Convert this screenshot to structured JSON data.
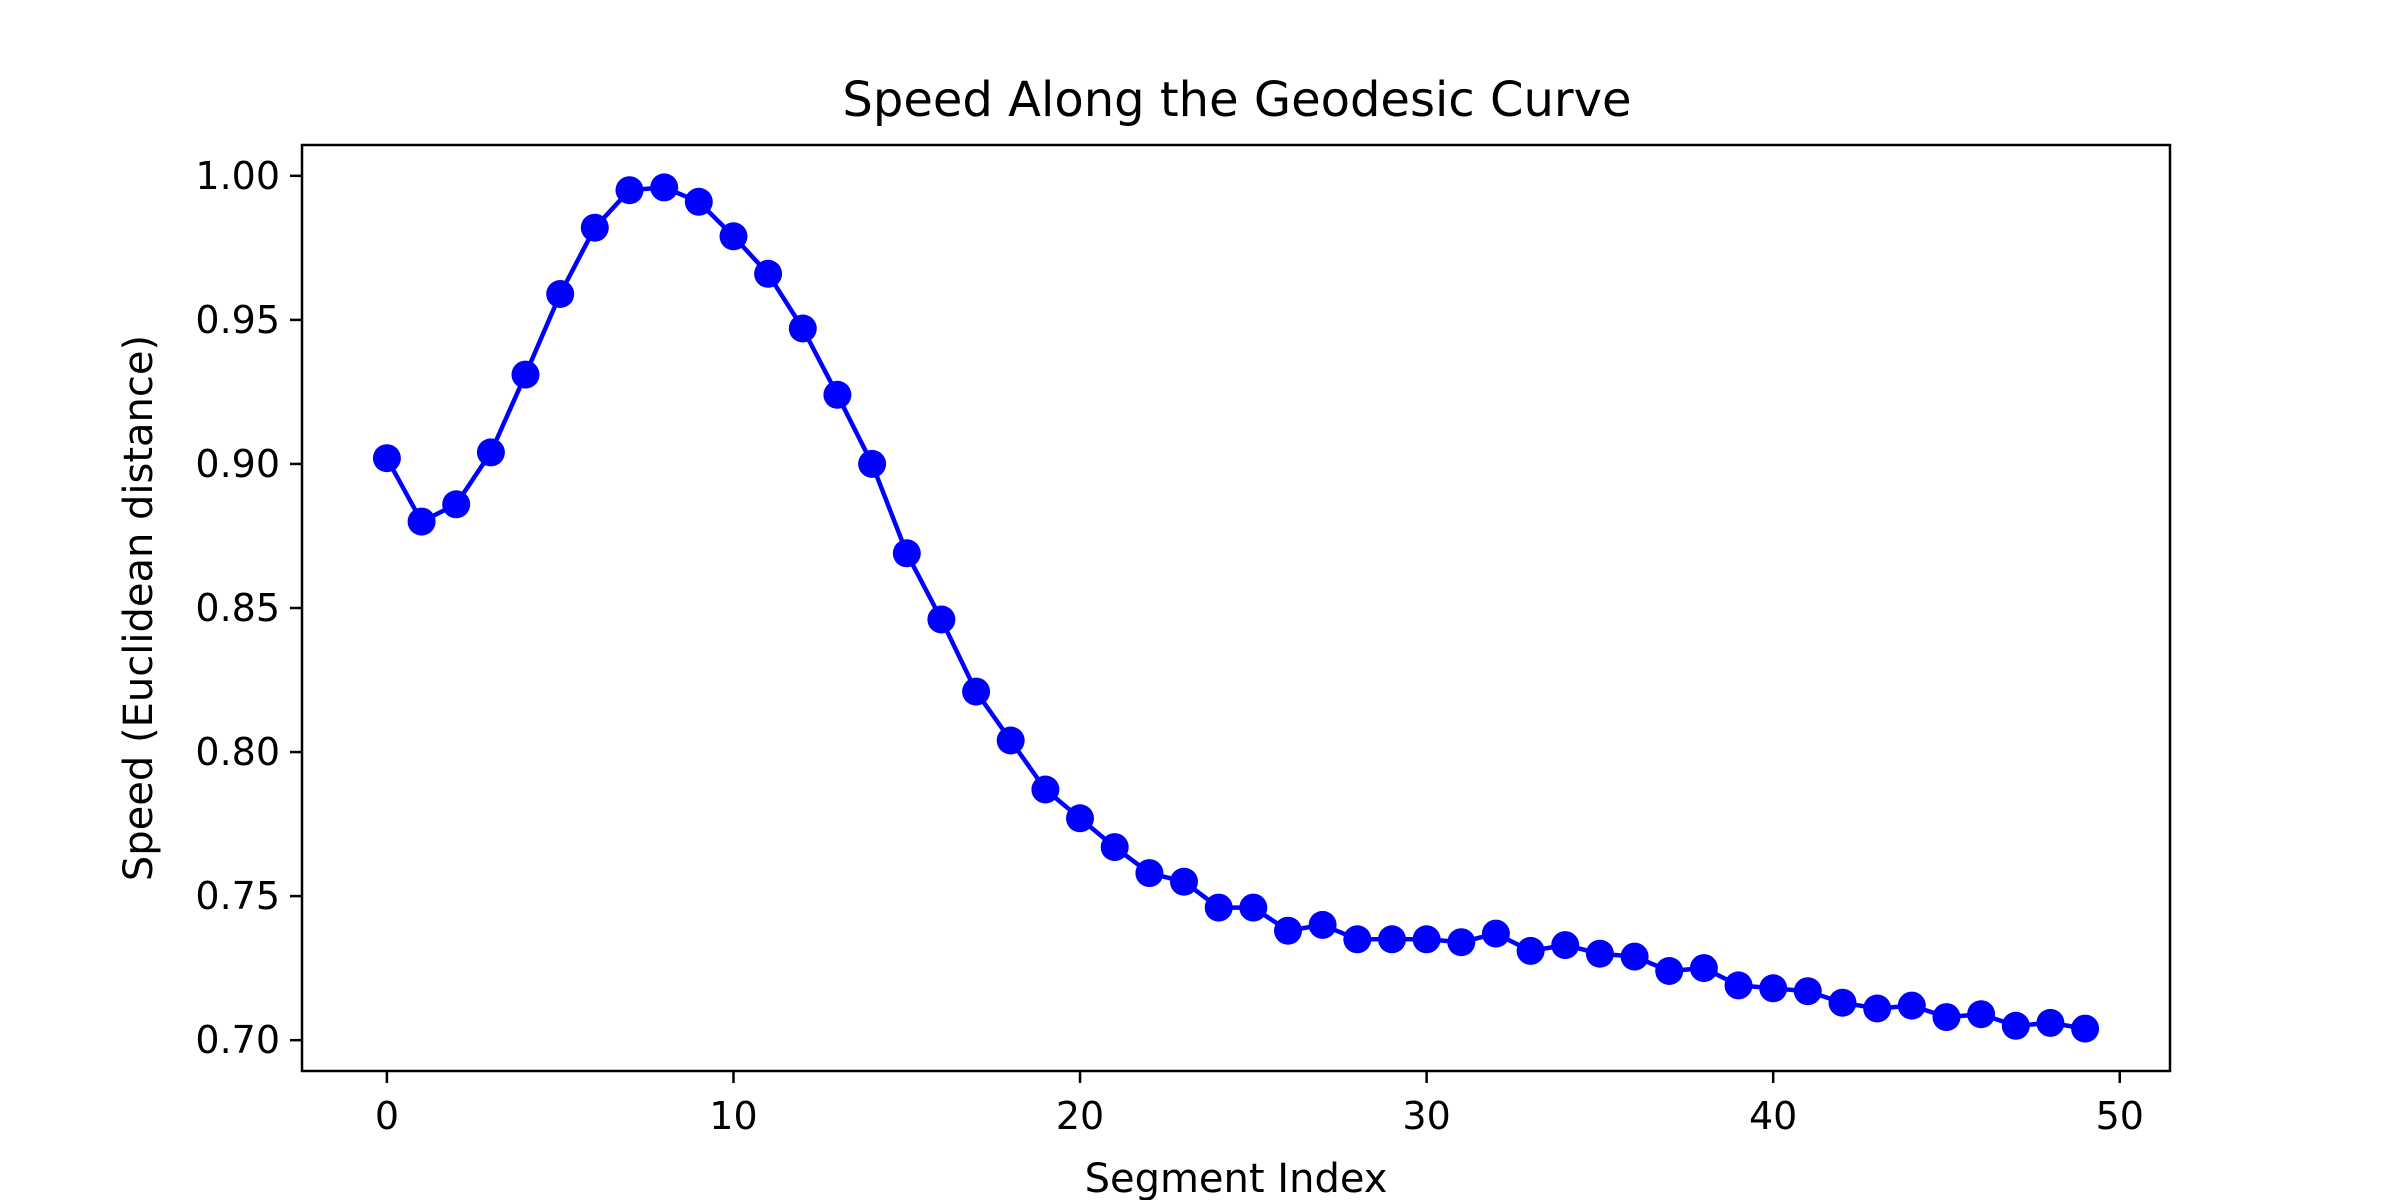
{
  "chart_data": {
    "type": "line",
    "title": "Speed Along the Geodesic Curve",
    "xlabel": "Segment Index",
    "ylabel": "Speed (Euclidean distance)",
    "xlim": [
      -2.45,
      51.45
    ],
    "ylim": [
      0.6893,
      1.0107
    ],
    "xticks": [
      0,
      10,
      20,
      30,
      40,
      50
    ],
    "yticks": [
      0.7,
      0.75,
      0.8,
      0.85,
      0.9,
      0.95,
      1.0
    ],
    "xtick_labels": [
      "0",
      "10",
      "20",
      "30",
      "40",
      "50"
    ],
    "ytick_labels": [
      "0.70",
      "0.75",
      "0.80",
      "0.85",
      "0.90",
      "0.95",
      "1.00"
    ],
    "grid": false,
    "legend": "none",
    "series": [
      {
        "color": "#0000ff",
        "marker": "circle",
        "x": [
          0,
          1,
          2,
          3,
          4,
          5,
          6,
          7,
          8,
          9,
          10,
          11,
          12,
          13,
          14,
          15,
          16,
          17,
          18,
          19,
          20,
          21,
          22,
          23,
          24,
          25,
          26,
          27,
          28,
          29,
          30,
          31,
          32,
          33,
          34,
          35,
          36,
          37,
          38,
          39,
          40,
          41,
          42,
          43,
          44,
          45,
          46,
          47,
          48,
          49
        ],
        "values": [
          0.902,
          0.88,
          0.886,
          0.904,
          0.931,
          0.959,
          0.982,
          0.995,
          0.996,
          0.991,
          0.979,
          0.966,
          0.947,
          0.924,
          0.9,
          0.869,
          0.846,
          0.821,
          0.804,
          0.787,
          0.777,
          0.767,
          0.758,
          0.755,
          0.746,
          0.746,
          0.738,
          0.74,
          0.735,
          0.735,
          0.735,
          0.734,
          0.737,
          0.731,
          0.733,
          0.73,
          0.729,
          0.724,
          0.725,
          0.719,
          0.718,
          0.717,
          0.713,
          0.711,
          0.712,
          0.708,
          0.709,
          0.705,
          0.706,
          0.704
        ]
      }
    ]
  }
}
